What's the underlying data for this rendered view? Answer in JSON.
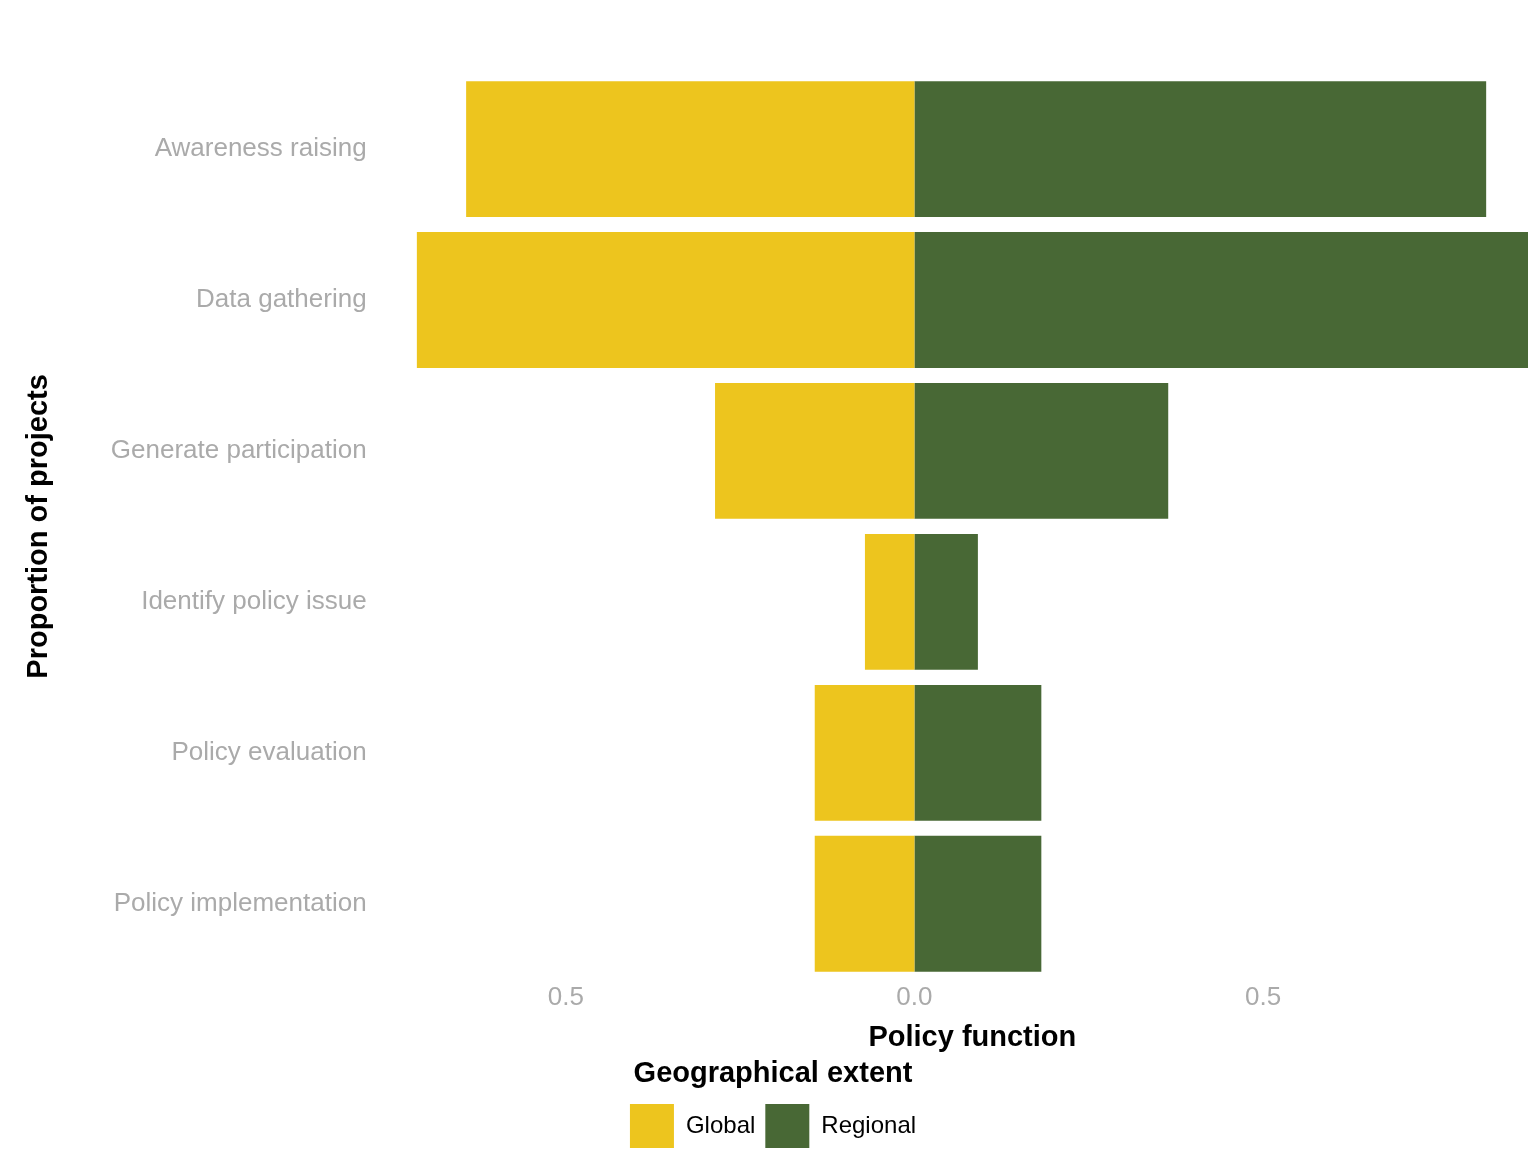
{
  "chart_data": {
    "type": "bar",
    "orientation": "horizontal",
    "stacked": true,
    "xlabel": "Policy function",
    "ylabel": "Proportion of projects",
    "legend_title": "Geographical extent",
    "legend": "bottom",
    "grid": false,
    "categories": [
      "Awareness raising",
      "Data gathering",
      "Generate participation",
      "Identify policy issue",
      "Policy evaluation",
      "Policy implementation"
    ],
    "series": [
      {
        "name": "Global",
        "color": "#edc51e",
        "values": [
          -0.643,
          -0.714,
          -0.286,
          -0.071,
          -0.143,
          -0.143
        ]
      },
      {
        "name": "Regional",
        "color": "#486835",
        "values": [
          0.82,
          0.88,
          0.364,
          0.091,
          0.182,
          0.182
        ]
      }
    ],
    "xlim": [
      -0.714,
      0.88
    ],
    "xticks": [
      {
        "value": -0.5,
        "label": "0.5"
      },
      {
        "value": 0,
        "label": "0.0"
      },
      {
        "value": 0.5,
        "label": "0.5"
      }
    ]
  }
}
